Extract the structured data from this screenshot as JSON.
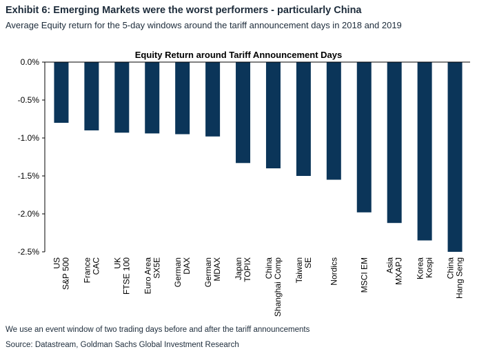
{
  "exhibit": {
    "title": "Exhibit 6: Emerging Markets were the worst performers - particularly China",
    "subtitle": "Average Equity return for the 5-day windows around the tariff announcement days in 2018 and 2019",
    "footnote": "We use an event window of two trading days before and after the tariff announcements",
    "source": "Source: Datastream, Goldman Sachs Global Investment Research"
  },
  "chart_data": {
    "type": "bar",
    "title": "Equity Return around Tariff Announcement Days",
    "xlabel": "",
    "ylabel": "",
    "categories": [
      [
        "US",
        "S&P 500"
      ],
      [
        "France",
        "CAC"
      ],
      [
        "UK",
        "FTSE 100"
      ],
      [
        "Euro Area",
        "SX5E"
      ],
      [
        "German",
        "DAX"
      ],
      [
        "German",
        "MDAX"
      ],
      [
        "Japan",
        "TOPIX"
      ],
      [
        "China",
        "Shanghai Comp"
      ],
      [
        "Taiwan",
        "SE"
      ],
      [
        "Nordics"
      ],
      [
        "MSCI EM"
      ],
      [
        "Asia",
        "MXAPJ"
      ],
      [
        "Korea",
        "Kospi"
      ],
      [
        "China",
        "Hang Seng"
      ]
    ],
    "values": [
      -0.8,
      -0.9,
      -0.93,
      -0.94,
      -0.95,
      -0.98,
      -1.33,
      -1.4,
      -1.5,
      -1.55,
      -1.98,
      -2.12,
      -2.35,
      -2.5
    ],
    "ylim": [
      -2.5,
      0.0
    ],
    "yticks": [
      0.0,
      -0.5,
      -1.0,
      -1.5,
      -2.0,
      -2.5
    ],
    "ytick_labels": [
      "0.0%",
      "-0.5%",
      "-1.0%",
      "-1.5%",
      "-2.0%",
      "-2.5%"
    ],
    "grid": false,
    "legend": "none",
    "bar_color": "#0b3559"
  }
}
